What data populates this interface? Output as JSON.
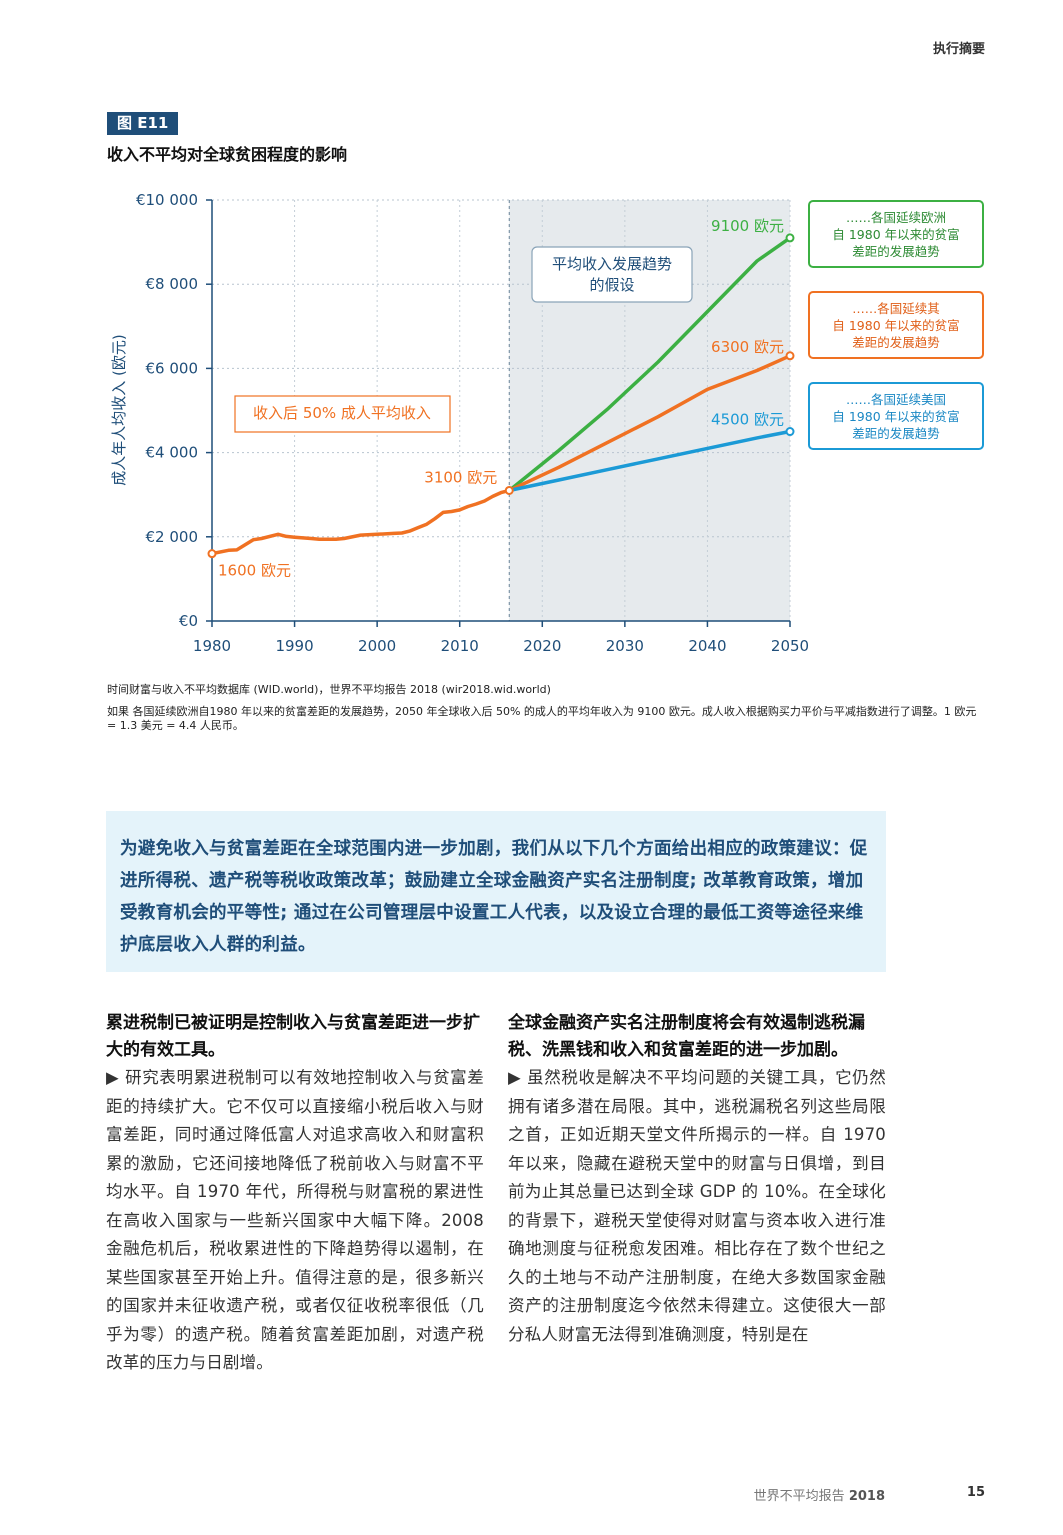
{
  "header": {
    "section": "执行摘要"
  },
  "figure": {
    "label": "图 E11",
    "title": "收入不平均对全球贫困程度的影响",
    "inner_box_label": "收入后 50% 成人平均收入",
    "shaded_box_label_line1": "平均收入发展趋势",
    "shaded_box_label_line2": "的假设",
    "legend": [
      {
        "line1": "……各国延续欧洲",
        "line2": "自 1980 年以来的贫富",
        "line3": "差距的发展趋势",
        "color": "#3cb043"
      },
      {
        "line1": "……各国延续其",
        "line2": "自 1980 年以来的贫富",
        "line3": "差距的发展趋势",
        "color": "#f07122"
      },
      {
        "line1": "……各国延续美国",
        "line2": "自 1980 年以来的贫富",
        "line3": "差距的发展趋势",
        "color": "#1b9ad6"
      }
    ]
  },
  "chart_data": {
    "type": "line",
    "ylabel": "成人年人均收入 (欧元)",
    "xlim": [
      1980,
      2050
    ],
    "ylim": [
      0,
      10000
    ],
    "x_ticks": [
      1980,
      1990,
      2000,
      2010,
      2020,
      2030,
      2040,
      2050
    ],
    "y_tick_values": [
      0,
      2000,
      4000,
      6000,
      8000,
      10000
    ],
    "y_tick_labels": [
      "€0",
      "€2 000",
      "€4 000",
      "€6 000",
      "€8 000",
      "€10 000"
    ],
    "projection_start": 2016,
    "historical": {
      "color": "#f07122",
      "x": [
        1980,
        1982,
        1983,
        1985,
        1986,
        1988,
        1989,
        1990,
        1992,
        1993,
        1995,
        1996,
        1998,
        2000,
        2002,
        2003,
        2004,
        2005,
        2006,
        2007,
        2008,
        2009,
        2010,
        2011,
        2012,
        2013,
        2014,
        2015,
        2016
      ],
      "y": [
        1600,
        1680,
        1690,
        1930,
        1960,
        2060,
        2010,
        1990,
        1960,
        1940,
        1940,
        1960,
        2040,
        2060,
        2080,
        2090,
        2140,
        2220,
        2300,
        2430,
        2580,
        2600,
        2640,
        2720,
        2780,
        2850,
        2960,
        3050,
        3100
      ]
    },
    "series": [
      {
        "color": "#3cb043",
        "x": [
          2016,
          2022,
          2028,
          2034,
          2040,
          2046,
          2050
        ],
        "y": [
          3100,
          4050,
          5050,
          6150,
          7350,
          8550,
          9100
        ]
      },
      {
        "color": "#f07122",
        "x": [
          2016,
          2022,
          2028,
          2034,
          2040,
          2046,
          2050
        ],
        "y": [
          3100,
          3650,
          4250,
          4850,
          5500,
          5950,
          6300
        ]
      },
      {
        "color": "#1b9ad6",
        "x": [
          2016,
          2022,
          2028,
          2034,
          2040,
          2046,
          2050
        ],
        "y": [
          3100,
          3350,
          3600,
          3850,
          4100,
          4350,
          4500
        ]
      }
    ],
    "annotations": [
      {
        "text": "1600 欧元",
        "x": 1980,
        "y": 1600,
        "color": "#f07122"
      },
      {
        "text": "3100 欧元",
        "x": 2016,
        "y": 3100,
        "color": "#f07122"
      },
      {
        "text": "9100 欧元",
        "x": 2050,
        "y": 9100,
        "color": "#3cb043"
      },
      {
        "text": "6300 欧元",
        "x": 2050,
        "y": 6300,
        "color": "#f07122"
      },
      {
        "text": "4500 欧元",
        "x": 2050,
        "y": 4500,
        "color": "#1b9ad6"
      }
    ]
  },
  "notes": {
    "source": "时间财富与收入不平均数据库 (WID.world)，世界不平均报告 2018 (wir2018.wid.world)",
    "footnote": "如果 各国延续欧洲自1980 年以来的贫富差距的发展趋势，2050 年全球收入后 50% 的成人的平均年收入为 9100 欧元。成人收入根据购买力平价与平减指数进行了调整。1 欧元 = 1.3 美元 = 4.4 人民币。"
  },
  "callout": {
    "text": "为避免收入与贫富差距在全球范围内进一步加剧，我们从以下几个方面给出相应的政策建议：促进所得税、遗产税等税收政策改革；鼓励建立全球金融资产实名注册制度; 改革教育政策，增加受教育机会的平等性; 通过在公司管理层中设置工人代表，以及设立合理的最低工资等途径来维护底层收入人群的利益。"
  },
  "columns": {
    "left": {
      "heading": "累进税制已被证明是控制收入与贫富差距进一步扩大的有效工具。",
      "body": "▶ 研究表明累进税制可以有效地控制收入与贫富差距的持续扩大。它不仅可以直接缩小税后收入与财富差距，同时通过降低富人对追求高收入和财富积累的激励，它还间接地降低了税前收入与财富不平均水平。自 1970 年代，所得税与财富税的累进性在高收入国家与一些新兴国家中大幅下降。2008 金融危机后，税收累进性的下降趋势得以遏制，在某些国家甚至开始上升。值得注意的是，很多新兴的国家并未征收遗产税，或者仅征收税率很低（几乎为零）的遗产税。随着贫富差距加剧，对遗产税改革的压力与日剧增。"
    },
    "right": {
      "heading": "全球金融资产实名注册制度将会有效遏制逃税漏税、洗黑钱和收入和贫富差距的进一步加剧。",
      "body": "▶ 虽然税收是解决不平均问题的关键工具，它仍然拥有诸多潜在局限。其中，逃税漏税名列这些局限之首，正如近期天堂文件所揭示的一样。自 1970 年以来，隐藏在避税天堂中的财富与日俱增，到目前为止其总量已达到全球 GDP 的 10%。在全球化的背景下，避税天堂使得对财富与资本收入进行准确地测度与征税愈发困难。相比存在了数个世纪之久的土地与不动产注册制度，在绝大多数国家金融资产的注册制度迄今依然未得建立。这使很大一部分私人财富无法得到准确测度，特别是在"
    }
  },
  "footer": {
    "report": "世界不平均报告",
    "year": "2018",
    "page": "15"
  }
}
